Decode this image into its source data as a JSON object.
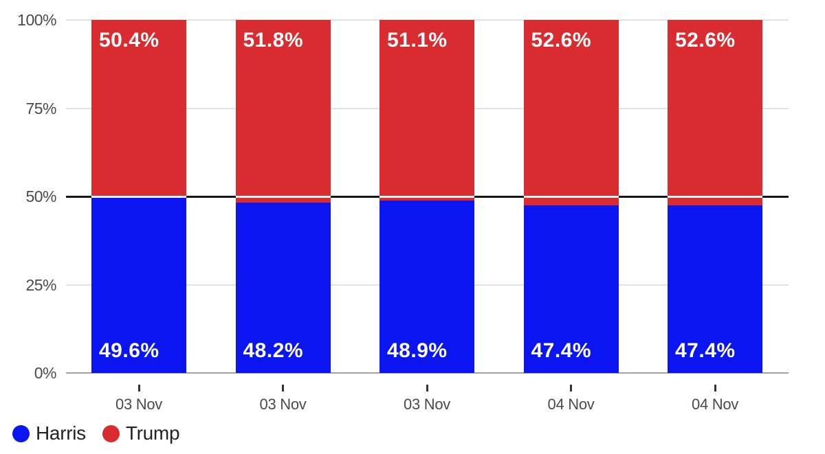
{
  "chart_data": {
    "type": "bar",
    "stacked": true,
    "title": "",
    "categories": [
      "03 Nov",
      "03 Nov",
      "03 Nov",
      "04 Nov",
      "04 Nov"
    ],
    "series": [
      {
        "name": "Harris",
        "color": "#0b15ef",
        "values": [
          49.6,
          48.2,
          48.9,
          47.4,
          47.4
        ],
        "labels": [
          "49.6%",
          "48.2%",
          "48.9%",
          "47.4%",
          "47.4%"
        ]
      },
      {
        "name": "Trump",
        "color": "#d92c31",
        "values": [
          50.4,
          51.8,
          51.1,
          52.6,
          52.6
        ],
        "labels": [
          "50.4%",
          "51.8%",
          "51.1%",
          "52.6%",
          "52.6%"
        ]
      }
    ],
    "y_axis": {
      "ticks": [
        "0%",
        "25%",
        "50%",
        "75%",
        "100%"
      ],
      "tick_values": [
        0,
        25,
        50,
        75,
        100
      ],
      "ylim": [
        0,
        100
      ]
    },
    "reference_line": {
      "value": 50,
      "color_outside_bars": "#161616",
      "color_over_bars": "#ffffff"
    },
    "grid": true,
    "legend_position": "bottom-left"
  },
  "legend": {
    "items": [
      {
        "label": "Harris",
        "color": "#0b15ef"
      },
      {
        "label": "Trump",
        "color": "#d92c31"
      }
    ]
  },
  "colors": {
    "harris_blue": "#0b15ef",
    "trump_red": "#d92c31",
    "gridline": "#e2e2e2",
    "axis_line": "#a0a0a0",
    "reference_line": "#161616",
    "tick_label": "#4a4a4a",
    "legend_text": "#222222"
  }
}
